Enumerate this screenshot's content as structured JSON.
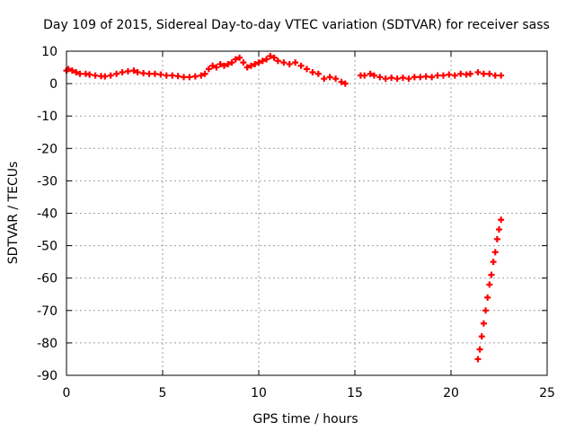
{
  "chart_data": {
    "type": "scatter",
    "title": "Day 109 of 2015, Sidereal Day-to-day VTEC variation (SDTVAR) for receiver sass",
    "xlabel": "GPS time / hours",
    "ylabel": "SDTVAR / TECUs",
    "xlim": [
      0,
      25
    ],
    "ylim": [
      -90,
      10
    ],
    "xticks": [
      0,
      5,
      10,
      15,
      20,
      25
    ],
    "yticks": [
      10,
      0,
      -10,
      -20,
      -30,
      -40,
      -50,
      -60,
      -70,
      -80,
      -90
    ],
    "grid": true,
    "marker": "plus",
    "series": [
      {
        "color": "#ff0000",
        "x": [
          0.0,
          0.1,
          0.3,
          0.5,
          0.7,
          1.0,
          1.2,
          1.5,
          1.8,
          2.0,
          2.3,
          2.6,
          2.9,
          3.2,
          3.5,
          3.7,
          4.0,
          4.3,
          4.6,
          4.9,
          5.2,
          5.5,
          5.8,
          6.1,
          6.4,
          6.7,
          7.0,
          7.2,
          7.4,
          7.6,
          7.8,
          8.0,
          8.2,
          8.4,
          8.6,
          8.8,
          9.0,
          9.2,
          9.4,
          9.6,
          9.8,
          10.0,
          10.2,
          10.4,
          10.6,
          10.8,
          11.0,
          11.3,
          11.6,
          11.9,
          12.2,
          12.5,
          12.8,
          13.1,
          13.4,
          13.7,
          14.0,
          14.3,
          14.5,
          15.3,
          15.5,
          15.8,
          16.0,
          16.3,
          16.6,
          16.9,
          17.2,
          17.5,
          17.8,
          18.1,
          18.4,
          18.7,
          19.0,
          19.3,
          19.6,
          19.9,
          20.2,
          20.5,
          20.8,
          21.0,
          21.4,
          21.7,
          22.0,
          22.3,
          22.6
        ],
        "y": [
          4.0,
          4.5,
          4.0,
          3.5,
          3.0,
          3.0,
          2.8,
          2.5,
          2.3,
          2.2,
          2.5,
          3.0,
          3.5,
          3.8,
          4.0,
          3.5,
          3.2,
          3.0,
          3.0,
          2.8,
          2.5,
          2.5,
          2.3,
          2.0,
          2.0,
          2.2,
          2.5,
          3.0,
          4.5,
          5.5,
          5.0,
          6.0,
          5.5,
          6.0,
          6.5,
          7.5,
          8.0,
          6.5,
          5.0,
          5.5,
          6.0,
          6.5,
          7.0,
          7.5,
          8.5,
          8.0,
          7.0,
          6.5,
          6.0,
          6.5,
          5.5,
          4.5,
          3.5,
          3.0,
          1.5,
          2.0,
          1.5,
          0.5,
          0.0,
          2.5,
          2.5,
          3.0,
          2.5,
          2.0,
          1.5,
          1.8,
          1.5,
          1.8,
          1.5,
          2.0,
          2.0,
          2.2,
          2.0,
          2.5,
          2.5,
          2.8,
          2.5,
          3.0,
          2.8,
          3.0,
          3.5,
          3.0,
          3.0,
          2.5,
          2.5
        ]
      },
      {
        "color": "#ff0000",
        "x": [
          21.4,
          21.5,
          21.6,
          21.7,
          21.8,
          21.9,
          22.0,
          22.1,
          22.2,
          22.3,
          22.4,
          22.5,
          22.6
        ],
        "y": [
          -85,
          -82,
          -78,
          -74,
          -70,
          -66,
          -62,
          -59,
          -55,
          -52,
          -48,
          -45,
          -42
        ]
      }
    ]
  }
}
